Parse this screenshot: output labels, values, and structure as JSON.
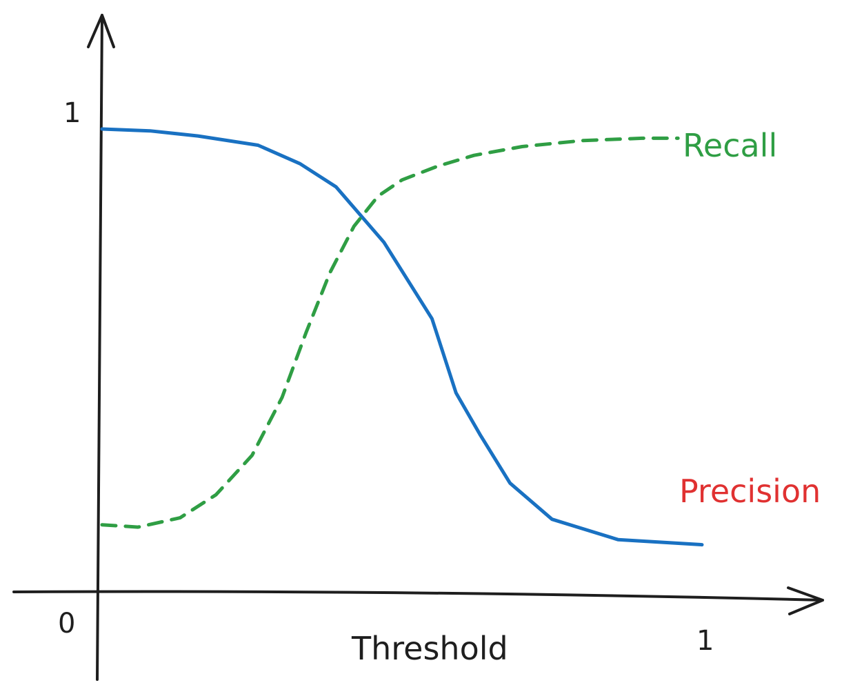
{
  "chart_data": {
    "type": "line",
    "xlabel": "Threshold",
    "ylabel": "",
    "xlim": [
      0,
      1
    ],
    "ylim": [
      0,
      1
    ],
    "x_ticks": [
      "0",
      "1"
    ],
    "y_ticks": [
      "1"
    ],
    "grid": false,
    "series": [
      {
        "name": "Precision",
        "color": "#1971c2",
        "line_style": "solid",
        "label_color": "#e03131",
        "x": [
          0.0,
          0.08,
          0.16,
          0.26,
          0.33,
          0.39,
          0.47,
          0.55,
          0.59,
          0.63,
          0.68,
          0.75,
          0.86,
          1.0
        ],
        "y": [
          1.0,
          0.996,
          0.985,
          0.965,
          0.925,
          0.875,
          0.755,
          0.59,
          0.43,
          0.34,
          0.235,
          0.157,
          0.113,
          0.102
        ]
      },
      {
        "name": "Recall",
        "color": "#2f9e44",
        "line_style": "dashed",
        "label_color": "#2f9e44",
        "x": [
          0.0,
          0.06,
          0.13,
          0.19,
          0.25,
          0.3,
          0.34,
          0.38,
          0.42,
          0.46,
          0.5,
          0.56,
          0.62,
          0.7,
          0.8,
          0.9,
          0.96
        ],
        "y": [
          0.145,
          0.14,
          0.16,
          0.21,
          0.295,
          0.42,
          0.56,
          0.69,
          0.79,
          0.855,
          0.89,
          0.92,
          0.943,
          0.962,
          0.975,
          0.98,
          0.98
        ]
      }
    ]
  }
}
